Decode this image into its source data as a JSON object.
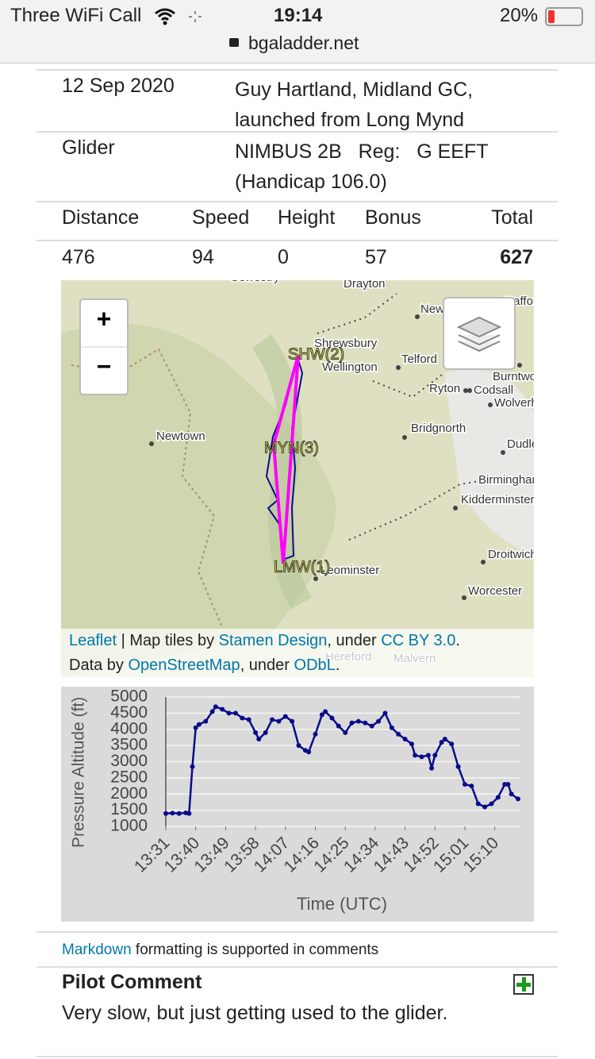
{
  "status_bar": {
    "carrier": "Three WiFi Call",
    "time": "19:14",
    "battery": "20%",
    "url": "bgaladder.net"
  },
  "flight": {
    "rows": [
      [
        "12 Sep 2020",
        "Guy Hartland, Midland GC, launched from Long Mynd"
      ],
      [
        "Glider",
        "NIMBUS 2B   Reg:   G EEFT (Handicap 106.0)"
      ]
    ]
  },
  "scores": {
    "headers": [
      "Distance",
      "Speed",
      "Height",
      "Bonus",
      "Total"
    ],
    "values": [
      476,
      94,
      0,
      57,
      627
    ]
  },
  "map": {
    "zoom_in": "+",
    "zoom_out": "−",
    "places": [
      "Oswestry",
      "Drayton",
      "Newport",
      "Stafford",
      "Shrewsbury",
      "Wellington",
      "Telford",
      "Ryton",
      "Codsall",
      "Burntwood",
      "Wolverhampton",
      "Newtown",
      "Bridgnorth",
      "Dudley",
      "Birmingham",
      "Kidderminster",
      "Droitwich",
      "Leominster",
      "Worcester",
      "Hereford",
      "Malvern"
    ],
    "turnpoints": [
      "SHW(2)",
      "MYN(3)",
      "LMW(1)"
    ],
    "attribution": [
      "Leaflet",
      " | Map tiles by ",
      "Stamen Design",
      ", under ",
      "CC BY 3.0",
      ".",
      "Data by ",
      "OpenStreetMap",
      ", under ",
      "ODbL",
      "."
    ]
  },
  "chart_data": {
    "type": "line",
    "y_label": "Pressure Altitude (ft)",
    "x_label": "Time (UTC)",
    "x": [
      "13:31",
      "13:33",
      "13:35",
      "13:37",
      "13:38",
      "13:39",
      "13:40",
      "13:41",
      "13:43",
      "13:45",
      "13:46",
      "13:48",
      "13:50",
      "13:52",
      "13:54",
      "13:56",
      "13:58",
      "13:59",
      "14:01",
      "14:03",
      "14:05",
      "14:07",
      "14:09",
      "14:11",
      "14:13",
      "14:14",
      "14:16",
      "14:18",
      "14:19",
      "14:21",
      "14:23",
      "14:25",
      "14:27",
      "14:29",
      "14:31",
      "14:33",
      "14:35",
      "14:37",
      "14:39",
      "14:41",
      "14:43",
      "14:45",
      "14:46",
      "14:48",
      "14:50",
      "14:51",
      "14:52",
      "14:54",
      "14:55",
      "14:57",
      "14:59",
      "15:01",
      "15:03",
      "15:05",
      "15:07",
      "15:09",
      "15:11",
      "15:13",
      "15:14",
      "15:15",
      "15:17"
    ],
    "series": [
      {
        "color": "#0b0b8a",
        "values": [
          1400,
          1410,
          1400,
          1420,
          1400,
          2850,
          4050,
          4150,
          4250,
          4550,
          4700,
          4620,
          4500,
          4500,
          4350,
          4300,
          3900,
          3700,
          3900,
          4300,
          4250,
          4400,
          4250,
          3500,
          3350,
          3300,
          3850,
          4450,
          4550,
          4350,
          4100,
          3900,
          4200,
          4250,
          4200,
          4100,
          4250,
          4500,
          4050,
          3850,
          3700,
          3550,
          3200,
          3150,
          3200,
          2800,
          3200,
          3600,
          3700,
          3550,
          2850,
          2300,
          2250,
          1700,
          1600,
          1700,
          1900,
          2300,
          2300,
          2000,
          1850
        ]
      }
    ],
    "xlim": [
      "13:31",
      "15:17"
    ],
    "xticks": [
      "13:31",
      "13:40",
      "13:49",
      "13:58",
      "14:07",
      "14:16",
      "14:25",
      "14:34",
      "14:43",
      "14:52",
      "15:01",
      "15:10"
    ],
    "ylim": [
      1000,
      5000
    ],
    "yticks": [
      1000,
      1500,
      2000,
      2500,
      3000,
      3500,
      4000,
      4500,
      5000
    ],
    "grid": true
  },
  "comments_note": {
    "link": "Markdown",
    "text": " formatting is supported in comments"
  },
  "pilot_comment": {
    "title": "Pilot Comment",
    "text": "Very slow, but just getting used to the glider."
  }
}
